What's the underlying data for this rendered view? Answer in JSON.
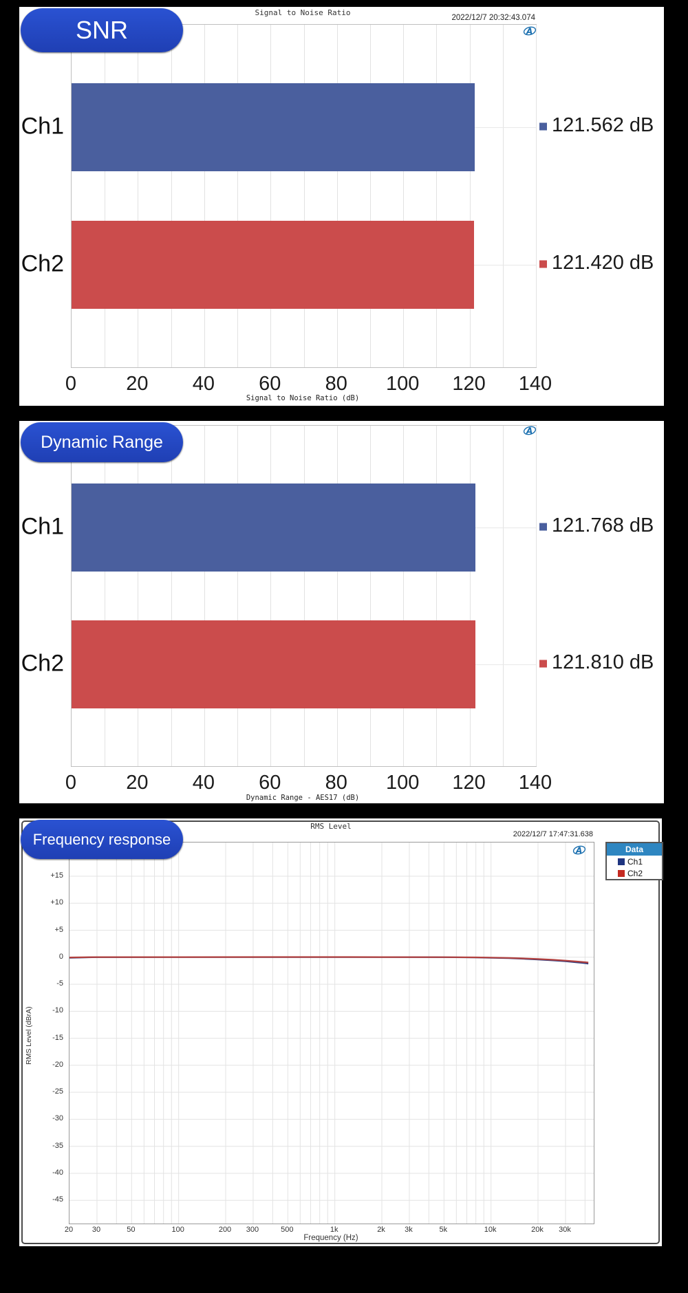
{
  "pills": {
    "snr": "SNR",
    "dynamic_range": "Dynamic Range",
    "frequency_response": "Frequency response"
  },
  "logo_name": "ap-logo",
  "chart_data": [
    {
      "type": "bar",
      "orientation": "horizontal",
      "title": "Signal to Noise Ratio",
      "timestamp": "2022/12/7 20:32:43.074",
      "categories": [
        "Ch1",
        "Ch2"
      ],
      "values": [
        121.562,
        121.42
      ],
      "value_labels": [
        "121.562 dB",
        "121.420 dB"
      ],
      "bar_colors": [
        "#4A5F9E",
        "#CB4C4C"
      ],
      "xlabel": "Signal to Noise Ratio (dB)",
      "xlim": [
        0,
        140
      ],
      "xtick_step_major": 20,
      "xtick_step_minor": 10,
      "xtick_labels": [
        "0",
        "20",
        "40",
        "60",
        "80",
        "100",
        "120",
        "140"
      ],
      "grid": true,
      "legend_position": "right-of-plot-value-labels"
    },
    {
      "type": "bar",
      "orientation": "horizontal",
      "title": "",
      "timestamp": "",
      "categories": [
        "Ch1",
        "Ch2"
      ],
      "values": [
        121.768,
        121.81
      ],
      "value_labels": [
        "121.768 dB",
        "121.810 dB"
      ],
      "bar_colors": [
        "#4A5F9E",
        "#CB4C4C"
      ],
      "xlabel": "Dynamic Range - AES17 (dB)",
      "xlim": [
        0,
        140
      ],
      "xtick_step_major": 20,
      "xtick_step_minor": 10,
      "xtick_labels": [
        "0",
        "20",
        "40",
        "60",
        "80",
        "100",
        "120",
        "140"
      ],
      "grid": true,
      "legend_position": "right-of-plot-value-labels"
    },
    {
      "type": "line",
      "title": "RMS Level",
      "timestamp": "2022/12/7 17:47:31.638",
      "xlabel": "Frequency (Hz)",
      "ylabel": "RMS Level (dBrA)",
      "xscale": "log",
      "xlim": [
        20,
        45000
      ],
      "ylim": [
        -49.5,
        21
      ],
      "ytick_values": [
        15,
        10,
        5,
        0,
        -5,
        -10,
        -15,
        -20,
        -25,
        -30,
        -35,
        -40,
        -45
      ],
      "ytick_labels": [
        "+15",
        "+10",
        "+5",
        "0",
        "-5",
        "-10",
        "-15",
        "-20",
        "-25",
        "-30",
        "-35",
        "-40",
        "-45"
      ],
      "xticks": [
        {
          "f": 20,
          "label": "20"
        },
        {
          "f": 30,
          "label": "30"
        },
        {
          "f": 50,
          "label": "50"
        },
        {
          "f": 100,
          "label": "100"
        },
        {
          "f": 200,
          "label": "200"
        },
        {
          "f": 300,
          "label": "300"
        },
        {
          "f": 500,
          "label": "500"
        },
        {
          "f": 1000,
          "label": "1k"
        },
        {
          "f": 2000,
          "label": "2k"
        },
        {
          "f": 3000,
          "label": "3k"
        },
        {
          "f": 5000,
          "label": "5k"
        },
        {
          "f": 10000,
          "label": "10k"
        },
        {
          "f": 20000,
          "label": "20k"
        },
        {
          "f": 30000,
          "label": "30k"
        }
      ],
      "grid": true,
      "legend": {
        "title": "Data",
        "position": "top-right-outside",
        "entries": [
          {
            "label": "Ch1",
            "color": "#1F3580"
          },
          {
            "label": "Ch2",
            "color": "#C52A21"
          }
        ]
      },
      "series": [
        {
          "name": "Ch1",
          "color": "#2B3A7E",
          "points": [
            [
              20,
              -0.12
            ],
            [
              25,
              -0.04
            ],
            [
              30,
              0
            ],
            [
              100,
              0.02
            ],
            [
              500,
              0.03
            ],
            [
              1000,
              0.03
            ],
            [
              2000,
              0.02
            ],
            [
              5000,
              0
            ],
            [
              8000,
              -0.05
            ],
            [
              10000,
              -0.1
            ],
            [
              13000,
              -0.18
            ],
            [
              16000,
              -0.28
            ],
            [
              20000,
              -0.42
            ],
            [
              25000,
              -0.58
            ],
            [
              30000,
              -0.75
            ],
            [
              35000,
              -0.93
            ],
            [
              40000,
              -1.1
            ],
            [
              42000,
              -1.18
            ]
          ]
        },
        {
          "name": "Ch2",
          "color": "#B2403E",
          "points": [
            [
              20,
              -0.04
            ],
            [
              30,
              0.02
            ],
            [
              100,
              0.03
            ],
            [
              500,
              0.04
            ],
            [
              1000,
              0.04
            ],
            [
              2000,
              0.03
            ],
            [
              5000,
              0.01
            ],
            [
              8000,
              -0.03
            ],
            [
              10000,
              -0.07
            ],
            [
              13000,
              -0.13
            ],
            [
              16000,
              -0.22
            ],
            [
              20000,
              -0.33
            ],
            [
              25000,
              -0.47
            ],
            [
              30000,
              -0.62
            ],
            [
              35000,
              -0.78
            ],
            [
              40000,
              -0.92
            ],
            [
              42000,
              -0.98
            ]
          ]
        }
      ]
    }
  ],
  "colors": {
    "background": "#000000",
    "panel": "#ffffff",
    "pill_blue": "#2447C6",
    "bar_blue": "#4A5F9E",
    "bar_red": "#CB4C4C",
    "legend_header_blue": "#2E86C1",
    "ap_logo_blue": "#1A6FAF"
  }
}
